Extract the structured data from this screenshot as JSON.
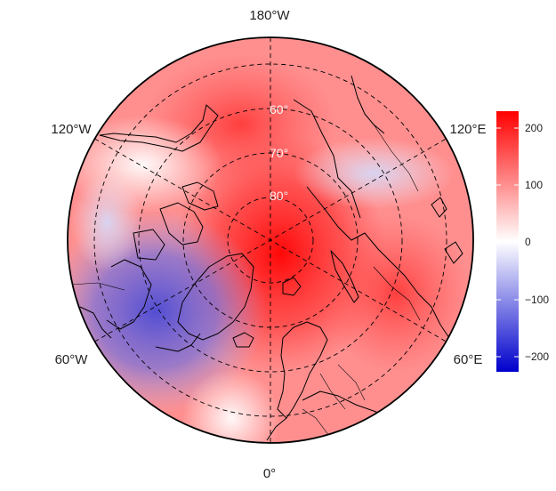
{
  "map": {
    "projection": "north polar stereographic",
    "lon_labels": {
      "top": "180°W",
      "bottom": "0°",
      "upper_left": "120°W",
      "upper_right": "120°E",
      "lower_left": "60°W",
      "lower_right": "60°E"
    },
    "lat_labels": [
      "60°",
      "70°",
      "80°"
    ],
    "graticule_style": "dashed",
    "coastlines": true,
    "country_borders": true
  },
  "colorbar": {
    "ticks": [
      "200",
      "100",
      "0",
      "−100",
      "−200"
    ],
    "range": [
      -230,
      230
    ],
    "colors": {
      "high": "#ff0000",
      "mid": "#ffffff",
      "low": "#0000cc"
    }
  }
}
